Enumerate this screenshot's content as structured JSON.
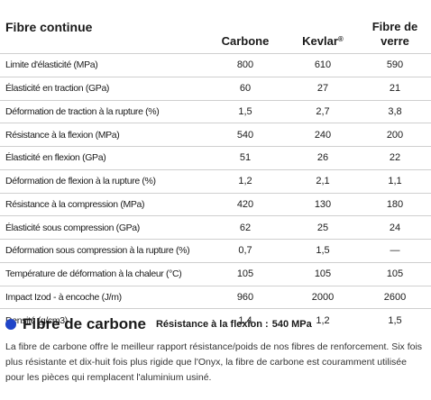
{
  "table": {
    "title": "Fibre continue",
    "columns": [
      {
        "name": "Carbone",
        "sup": ""
      },
      {
        "name": "Kevlar",
        "sup": "®"
      },
      {
        "name": "Fibre de verre",
        "sup": ""
      }
    ],
    "rows": [
      {
        "label": "Limite d'élasticité (MPa)",
        "values": [
          "800",
          "610",
          "590"
        ]
      },
      {
        "label": "Élasticité en traction (GPa)",
        "values": [
          "60",
          "27",
          "21"
        ]
      },
      {
        "label": "Déformation de traction à la rupture (%)",
        "values": [
          "1,5",
          "2,7",
          "3,8"
        ]
      },
      {
        "label": "Résistance à la flexion (MPa)",
        "values": [
          "540",
          "240",
          "200"
        ]
      },
      {
        "label": "Élasticité en flexion (GPa)",
        "values": [
          "51",
          "26",
          "22"
        ]
      },
      {
        "label": "Déformation de flexion à la rupture (%)",
        "values": [
          "1,2",
          "2,1",
          "1,1"
        ]
      },
      {
        "label": "Résistance à la compression (MPa)",
        "values": [
          "420",
          "130",
          "180"
        ]
      },
      {
        "label": "Élasticité sous compression (GPa)",
        "values": [
          "62",
          "25",
          "24"
        ]
      },
      {
        "label": "Déformation sous compression à la rupture (%)",
        "values": [
          "0,7",
          "1,5",
          "—"
        ]
      },
      {
        "label": "Température de déformation à la chaleur (°C)",
        "values": [
          "105",
          "105",
          "105"
        ]
      },
      {
        "label": "Impact Izod - à encoche (J/m)",
        "values": [
          "960",
          "2000",
          "2600"
        ]
      },
      {
        "label": "Densité (g/cm3)",
        "values": [
          "1,4",
          "1,2",
          "1,5"
        ]
      }
    ]
  },
  "section": {
    "bullet_color": "#1f44c8",
    "title": "Fibre de carbone",
    "metric_label": "Résistance à la flexion :",
    "metric_value": "540 MPa",
    "body": "La fibre de carbone offre le meilleur rapport résistance/poids de nos fibres de renforcement. Six fois plus résistante et dix-huit fois plus rigide que l'Onyx, la fibre de carbone est couramment utilisée pour les pièces qui remplacent l'aluminium usiné."
  }
}
